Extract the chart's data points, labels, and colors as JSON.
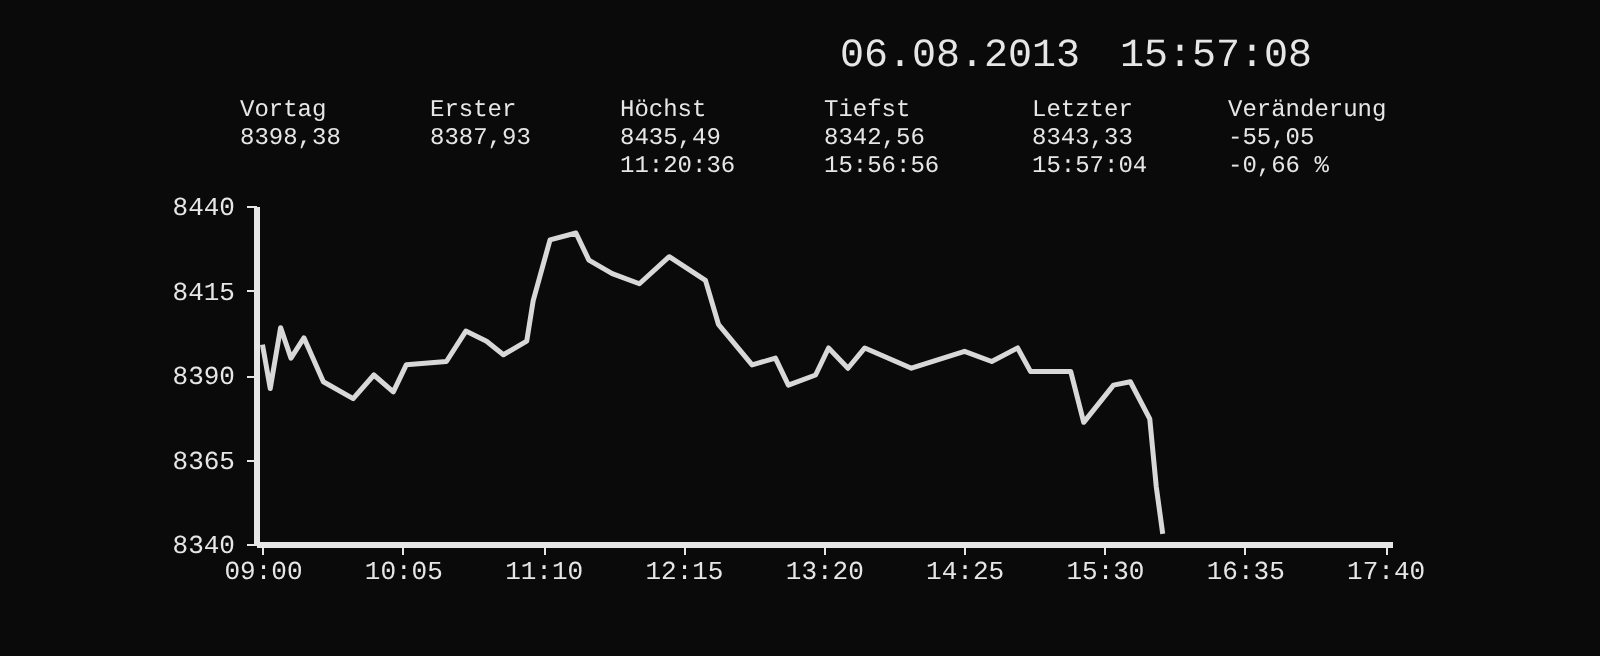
{
  "chart_data": {
    "type": "line",
    "annotations": [
      "06.08.2013",
      "15:57:08",
      "Vortag\n8398,38",
      "Erster\n8387,93",
      "Höchst\n8435,49\n11:20:36",
      "Tiefst\n8342,56\n15:56:56",
      "Letzter\n8343,33\n15:57:04",
      "Veränderung\n-55,05\n-0,66 %"
    ],
    "series": [
      {
        "color": "#d8d8d8",
        "x": [
          9.0,
          9.06,
          9.14,
          9.22,
          9.32,
          9.47,
          9.7,
          9.86,
          10.01,
          10.11,
          10.42,
          10.57,
          10.73,
          10.86,
          11.04,
          11.09,
          11.22,
          11.42,
          11.52,
          11.7,
          11.91,
          12.14,
          12.42,
          12.52,
          12.78,
          12.96,
          13.06,
          13.27,
          13.37,
          13.52,
          13.65,
          14.01,
          14.42,
          14.63,
          14.83,
          14.93,
          15.24,
          15.34,
          15.57,
          15.7,
          15.85,
          15.9,
          15.95
        ],
        "values": [
          8399,
          8386,
          8404,
          8395,
          8401,
          8388,
          8383,
          8390,
          8385,
          8393,
          8394,
          8403,
          8400,
          8396,
          8400,
          8412,
          8430,
          8432,
          8424,
          8420,
          8417,
          8425,
          8418,
          8405,
          8393,
          8395,
          8387,
          8390,
          8398,
          8392,
          8398,
          8392,
          8397,
          8394,
          8398,
          8391,
          8391,
          8376,
          8387,
          8388,
          8377,
          8357,
          8343
        ]
      }
    ],
    "xlim": [
      8.95,
      17.72
    ],
    "ylim": [
      8340,
      8440
    ],
    "xticks": [
      {
        "value": 9,
        "label": "09:00"
      },
      {
        "value": 10.0833,
        "label": "10:05"
      },
      {
        "value": 11.1667,
        "label": "11:10"
      },
      {
        "value": 12.25,
        "label": "12:15"
      },
      {
        "value": 13.3333,
        "label": "13:20"
      },
      {
        "value": 14.4167,
        "label": "14:25"
      },
      {
        "value": 15.5,
        "label": "15:30"
      },
      {
        "value": 16.5833,
        "label": "16:35"
      },
      {
        "value": 17.6667,
        "label": "17:40"
      }
    ],
    "yticks": [
      8340,
      8365,
      8390,
      8415,
      8440
    ],
    "grid": false,
    "marker": "none",
    "line_style": "solid"
  }
}
